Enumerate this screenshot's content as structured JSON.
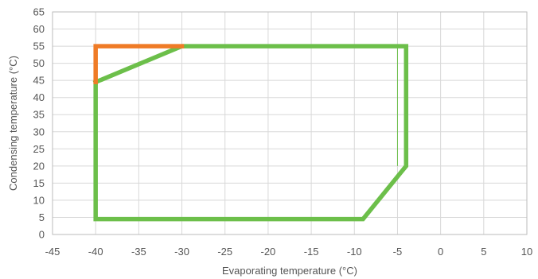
{
  "chart_data": {
    "type": "line",
    "title": "",
    "xlabel": "Evaporating temperature (°C)",
    "ylabel": "Condensing temperature (°C)",
    "xlim": [
      -45,
      10
    ],
    "ylim": [
      0,
      65
    ],
    "xticks": [
      -45,
      -40,
      -35,
      -30,
      -25,
      -20,
      -15,
      -10,
      -5,
      0,
      5,
      10
    ],
    "yticks": [
      0,
      5,
      10,
      15,
      20,
      25,
      30,
      35,
      40,
      45,
      50,
      55,
      60,
      65
    ],
    "grid": true,
    "series": [
      {
        "color": "#6cbf4a",
        "closed": true,
        "x": [
          -40,
          -30,
          -4,
          -4,
          -9,
          -40,
          -40
        ],
        "y": [
          44.5,
          55,
          55,
          20,
          4.5,
          4.5,
          44.5
        ]
      },
      {
        "color": "#ef7b26",
        "closed": false,
        "x": [
          -40,
          -40,
          -30
        ],
        "y": [
          44.5,
          55,
          55
        ]
      }
    ],
    "extra_marks": [
      {
        "color": "#6cbf4a",
        "x": [
          -5,
          -5
        ],
        "y": [
          20,
          55
        ]
      }
    ],
    "colors": {
      "grid": "#d8d8d8",
      "axis": "#bbbbbb",
      "text": "#555555"
    }
  }
}
